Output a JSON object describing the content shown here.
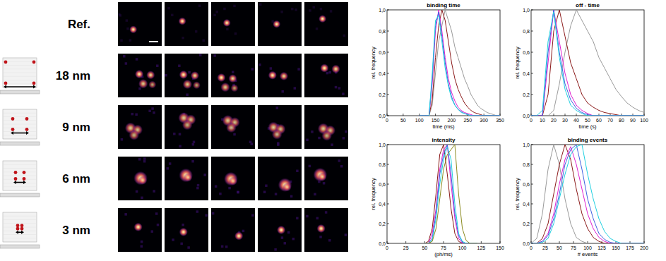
{
  "image_grid": {
    "rows": [
      {
        "label": "Ref."
      },
      {
        "label": "18 nm"
      },
      {
        "label": "9 nm"
      },
      {
        "label": "6 nm"
      },
      {
        "label": "3 nm"
      }
    ]
  },
  "chart_data": [
    {
      "type": "line",
      "title": "binding time",
      "x_label": "time (ms)",
      "y_label": "rel. frequency",
      "grid": false,
      "xlim": [
        0,
        350
      ],
      "xticks": [
        0,
        50,
        100,
        150,
        200,
        250,
        300,
        350
      ],
      "ylim": [
        0,
        1
      ],
      "yticks": [
        {
          "value": 0,
          "label": "0,0"
        },
        {
          "value": 0.2,
          "label": "0,2"
        },
        {
          "value": 0.4,
          "label": "0,4"
        },
        {
          "value": 0.6,
          "label": "0,6"
        },
        {
          "value": 0.8,
          "label": "0,8"
        },
        {
          "value": 1,
          "label": "1,0"
        }
      ],
      "x": [
        100,
        110,
        120,
        130,
        140,
        150,
        160,
        170,
        180,
        190,
        200,
        210,
        220,
        230,
        240,
        250,
        260,
        270,
        280,
        290,
        300,
        310,
        320,
        330,
        340,
        350
      ],
      "series": [
        {
          "color": "#9a9a9a",
          "values": [
            0,
            0,
            0,
            0,
            0.1,
            0.4,
            0.7,
            0.85,
            1.0,
            0.9,
            0.8,
            0.65,
            0.55,
            0.45,
            0.35,
            0.28,
            0.2,
            0.15,
            0.1,
            0.07,
            0.05,
            0.03,
            0.02,
            0.01,
            0,
            0
          ]
        },
        {
          "color": "#8b1a1a",
          "values": [
            0,
            0,
            0,
            0,
            0.15,
            0.55,
            0.85,
            1.0,
            0.9,
            0.7,
            0.5,
            0.35,
            0.25,
            0.18,
            0.12,
            0.08,
            0.05,
            0.03,
            0.02,
            0.01,
            0,
            0,
            0,
            0,
            0,
            0
          ]
        },
        {
          "color": "#e020d0",
          "values": [
            0,
            0,
            0,
            0,
            0.3,
            0.8,
            1.0,
            0.8,
            0.55,
            0.35,
            0.22,
            0.14,
            0.08,
            0.05,
            0.03,
            0.02,
            0.01,
            0,
            0,
            0,
            0,
            0,
            0,
            0,
            0,
            0
          ]
        },
        {
          "color": "#4060e0",
          "values": [
            0,
            0,
            0,
            0,
            0.35,
            0.85,
            0.98,
            0.75,
            0.5,
            0.3,
            0.18,
            0.1,
            0.06,
            0.04,
            0.02,
            0.01,
            0,
            0,
            0,
            0,
            0,
            0,
            0,
            0,
            0,
            0
          ]
        },
        {
          "color": "#20d0e0",
          "values": [
            0,
            0,
            0,
            0,
            0.4,
            0.9,
            0.95,
            0.7,
            0.45,
            0.28,
            0.16,
            0.1,
            0.06,
            0.03,
            0.02,
            0.01,
            0,
            0,
            0,
            0,
            0,
            0,
            0,
            0,
            0,
            0
          ]
        }
      ]
    },
    {
      "type": "line",
      "title": "off - time",
      "x_label": "time (s)",
      "y_label": "rel. frequency",
      "grid": false,
      "xlim": [
        0,
        100
      ],
      "xticks": [
        0,
        10,
        20,
        30,
        40,
        50,
        60,
        70,
        80,
        90,
        100
      ],
      "ylim": [
        0,
        1
      ],
      "yticks": [
        {
          "value": 0,
          "label": "0,0"
        },
        {
          "value": 0.2,
          "label": "0,2"
        },
        {
          "value": 0.4,
          "label": "0,4"
        },
        {
          "value": 0.6,
          "label": "0,6"
        },
        {
          "value": 0.8,
          "label": "0,8"
        },
        {
          "value": 1,
          "label": "1,0"
        }
      ],
      "x": [
        0,
        5,
        10,
        15,
        20,
        25,
        30,
        35,
        40,
        45,
        50,
        55,
        60,
        65,
        70,
        75,
        80,
        85,
        90,
        95,
        100
      ],
      "series": [
        {
          "color": "#9a9a9a",
          "values": [
            0,
            0,
            0,
            0,
            0.05,
            0.3,
            0.6,
            0.85,
            1.0,
            0.9,
            0.8,
            0.7,
            0.55,
            0.45,
            0.35,
            0.25,
            0.18,
            0.12,
            0.08,
            0.05,
            0.03
          ]
        },
        {
          "color": "#8b1a1a",
          "values": [
            0,
            0,
            0,
            0.2,
            0.8,
            1.0,
            0.75,
            0.5,
            0.35,
            0.2,
            0.12,
            0.08,
            0.05,
            0.03,
            0.02,
            0.01,
            0,
            0,
            0,
            0,
            0
          ]
        },
        {
          "color": "#e020d0",
          "values": [
            0,
            0,
            0,
            0.5,
            1.0,
            0.7,
            0.4,
            0.2,
            0.1,
            0.05,
            0.02,
            0,
            0,
            0,
            0,
            0,
            0,
            0,
            0,
            0,
            0
          ]
        },
        {
          "color": "#4060e0",
          "values": [
            0,
            0,
            0,
            0.6,
            1.0,
            0.6,
            0.3,
            0.15,
            0.07,
            0.03,
            0.01,
            0,
            0,
            0,
            0,
            0,
            0,
            0,
            0,
            0,
            0
          ]
        },
        {
          "color": "#20d0e0",
          "values": [
            0,
            0,
            0.05,
            0.7,
            0.98,
            0.55,
            0.25,
            0.1,
            0.05,
            0.02,
            0,
            0,
            0,
            0,
            0,
            0,
            0,
            0,
            0,
            0,
            0
          ]
        }
      ]
    },
    {
      "type": "line",
      "title": "intensity",
      "x_label": "(ph/ms)",
      "y_label": "rel. frequency",
      "grid": false,
      "xlim": [
        0,
        150
      ],
      "xticks": [
        0,
        25,
        50,
        75,
        100,
        125,
        150
      ],
      "ylim": [
        0,
        1
      ],
      "yticks": [
        {
          "value": 0,
          "label": "0,0"
        },
        {
          "value": 0.2,
          "label": "0,2"
        },
        {
          "value": 0.4,
          "label": "0,4"
        },
        {
          "value": 0.6,
          "label": "0,6"
        },
        {
          "value": 0.8,
          "label": "0,8"
        },
        {
          "value": 1,
          "label": "1,0"
        }
      ],
      "x": [
        50,
        55,
        60,
        65,
        70,
        75,
        80,
        85,
        90,
        95,
        100,
        105,
        110,
        115,
        120
      ],
      "series": [
        {
          "color": "#8b1a1a",
          "values": [
            0,
            0.02,
            0.15,
            0.5,
            0.9,
            1.0,
            0.7,
            0.35,
            0.1,
            0.02,
            0,
            0,
            0,
            0,
            0
          ]
        },
        {
          "color": "#e020d0",
          "values": [
            0,
            0,
            0.1,
            0.35,
            0.75,
            0.95,
            1.0,
            0.6,
            0.25,
            0.05,
            0,
            0,
            0,
            0,
            0
          ]
        },
        {
          "color": "#4060e0",
          "values": [
            0,
            0,
            0.05,
            0.3,
            0.7,
            0.9,
            1.0,
            0.7,
            0.3,
            0.08,
            0.01,
            0,
            0,
            0,
            0
          ]
        },
        {
          "color": "#20d0e0",
          "values": [
            0,
            0,
            0.03,
            0.25,
            0.6,
            0.85,
            0.98,
            0.85,
            0.4,
            0.1,
            0.02,
            0,
            0,
            0,
            0
          ]
        },
        {
          "color": "#8b8b20",
          "values": [
            0,
            0,
            0.02,
            0.15,
            0.45,
            0.75,
            0.9,
            0.95,
            1.0,
            0.5,
            0.15,
            0.03,
            0,
            0,
            0
          ]
        }
      ]
    },
    {
      "type": "line",
      "title": "binding events",
      "x_label": "# events",
      "y_label": "rel. frequency",
      "grid": false,
      "xlim": [
        0,
        200
      ],
      "xticks": [
        0,
        25,
        50,
        75,
        100,
        125,
        150,
        175,
        200
      ],
      "ylim": [
        0,
        1
      ],
      "yticks": [
        {
          "value": 0,
          "label": "0,0"
        },
        {
          "value": 0.2,
          "label": "0,2"
        },
        {
          "value": 0.4,
          "label": "0,4"
        },
        {
          "value": 0.6,
          "label": "0,6"
        },
        {
          "value": 0.8,
          "label": "0,8"
        },
        {
          "value": 1,
          "label": "1,0"
        }
      ],
      "x": [
        0,
        10,
        20,
        30,
        40,
        50,
        60,
        70,
        80,
        90,
        100,
        110,
        120,
        130,
        140,
        150,
        160,
        170,
        180,
        190,
        200
      ],
      "series": [
        {
          "color": "#9a9a9a",
          "values": [
            0,
            0.05,
            0.3,
            0.75,
            1.0,
            0.8,
            0.45,
            0.2,
            0.06,
            0.02,
            0,
            0,
            0,
            0,
            0,
            0,
            0,
            0,
            0,
            0,
            0
          ]
        },
        {
          "color": "#8b1a1a",
          "values": [
            0,
            0,
            0.05,
            0.2,
            0.5,
            0.8,
            1.0,
            0.85,
            0.55,
            0.3,
            0.15,
            0.06,
            0.02,
            0,
            0,
            0,
            0,
            0,
            0,
            0,
            0
          ]
        },
        {
          "color": "#e020d0",
          "values": [
            0,
            0,
            0.02,
            0.1,
            0.3,
            0.6,
            0.85,
            0.98,
            0.8,
            0.55,
            0.3,
            0.15,
            0.06,
            0.02,
            0,
            0,
            0,
            0,
            0,
            0,
            0
          ]
        },
        {
          "color": "#4060e0",
          "values": [
            0,
            0,
            0.02,
            0.08,
            0.25,
            0.5,
            0.8,
            0.95,
            1.0,
            0.75,
            0.45,
            0.25,
            0.1,
            0.04,
            0.01,
            0,
            0,
            0,
            0,
            0,
            0
          ]
        },
        {
          "color": "#20d0e0",
          "values": [
            0,
            0,
            0.01,
            0.05,
            0.2,
            0.45,
            0.7,
            0.9,
            0.98,
            1.0,
            0.7,
            0.45,
            0.25,
            0.12,
            0.05,
            0.02,
            0,
            0,
            0,
            0,
            0
          ]
        }
      ]
    }
  ]
}
